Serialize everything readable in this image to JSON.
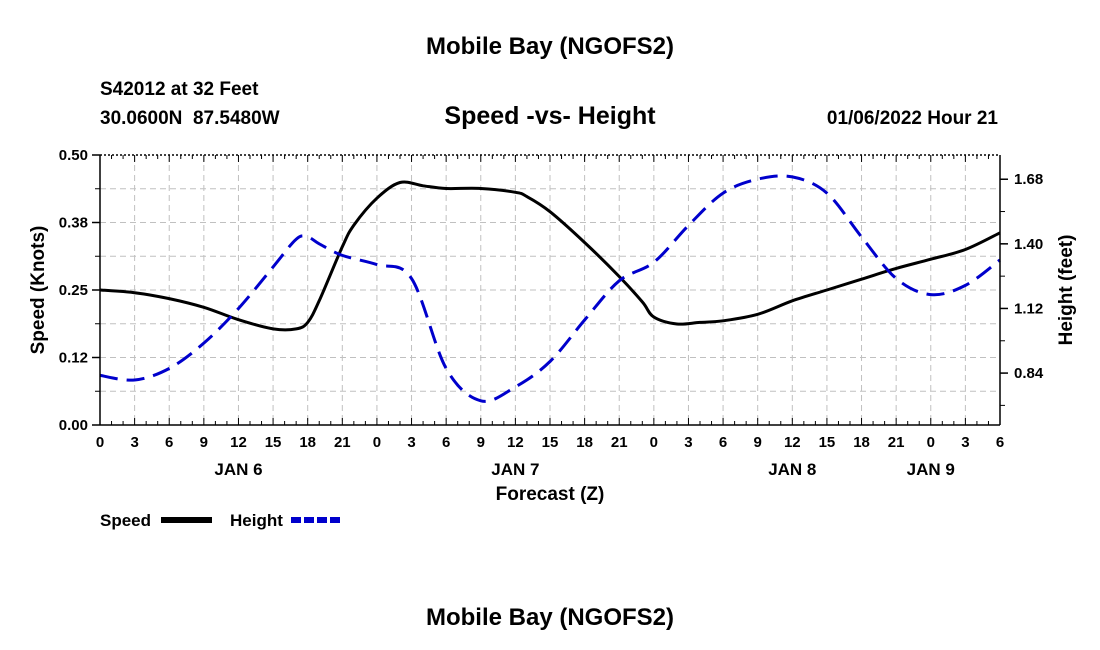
{
  "header": {
    "top_title": "Mobile Bay (NGOFS2)",
    "station": "S42012 at 32 Feet",
    "coords": "30.0600N  87.5480W",
    "main_title": "Speed -vs- Height",
    "datetime": "01/06/2022 Hour 21"
  },
  "footer": {
    "bottom_title": "Mobile Bay (NGOFS2)"
  },
  "colors": {
    "speed": "#000000",
    "height": "#0000cc",
    "grid": "#c0c0c0"
  },
  "chart_data": {
    "type": "line",
    "xlabel": "Forecast (Z)",
    "ylabel_left": "Speed (Knots)",
    "ylabel_right": "Height (feet)",
    "x_unit": "hours since 2022-01-06 00Z",
    "xlim": [
      0,
      78
    ],
    "ylim_left": [
      0,
      0.5
    ],
    "ylim_right": [
      0.615,
      1.785
    ],
    "x_tick_labels": [
      "0",
      "3",
      "6",
      "9",
      "12",
      "15",
      "18",
      "21",
      "0",
      "3",
      "6",
      "9",
      "12",
      "15",
      "18",
      "21",
      "0",
      "3",
      "6",
      "9",
      "12",
      "15",
      "18",
      "21",
      "0",
      "3",
      "6"
    ],
    "date_labels": [
      {
        "text": "JAN 6",
        "x": 12
      },
      {
        "text": "JAN 7",
        "x": 36
      },
      {
        "text": "JAN 8",
        "x": 60
      },
      {
        "text": "JAN 9",
        "x": 72
      }
    ],
    "left_ticks": [
      "0.00",
      "0.12",
      "0.25",
      "0.38",
      "0.50"
    ],
    "right_ticks": [
      "0.84",
      "1.12",
      "1.40",
      "1.68"
    ],
    "legend": [
      {
        "label": "Speed",
        "style": "solid"
      },
      {
        "label": "Height",
        "style": "dashed"
      }
    ],
    "series": [
      {
        "name": "Speed",
        "axis": "left",
        "style": "solid",
        "color": "#000000",
        "x": [
          0,
          3,
          6,
          9,
          12,
          15,
          17,
          18,
          19,
          21,
          22,
          24,
          26,
          28,
          30,
          33,
          36,
          37,
          39,
          42,
          45,
          47,
          48,
          50,
          52,
          54,
          57,
          60,
          63,
          66,
          69,
          72,
          75,
          78
        ],
        "y": [
          0.25,
          0.245,
          0.234,
          0.218,
          0.195,
          0.178,
          0.178,
          0.19,
          0.23,
          0.33,
          0.37,
          0.42,
          0.449,
          0.443,
          0.438,
          0.438,
          0.431,
          0.423,
          0.395,
          0.338,
          0.275,
          0.228,
          0.2,
          0.187,
          0.19,
          0.193,
          0.205,
          0.23,
          0.25,
          0.27,
          0.29,
          0.307,
          0.325,
          0.356
        ]
      },
      {
        "name": "Height",
        "axis": "right",
        "style": "dashed",
        "color": "#0000cc",
        "x": [
          0,
          3,
          6,
          9,
          12,
          15,
          17,
          18,
          19,
          21,
          24,
          27,
          30,
          33,
          36,
          39,
          42,
          45,
          48,
          51,
          54,
          57,
          60,
          63,
          66,
          69,
          72,
          75,
          78
        ],
        "y": [
          0.83,
          0.81,
          0.86,
          0.97,
          1.12,
          1.3,
          1.42,
          1.43,
          1.4,
          1.35,
          1.31,
          1.25,
          0.86,
          0.72,
          0.78,
          0.89,
          1.07,
          1.24,
          1.32,
          1.48,
          1.62,
          1.68,
          1.69,
          1.62,
          1.43,
          1.25,
          1.18,
          1.22,
          1.33
        ]
      }
    ]
  }
}
